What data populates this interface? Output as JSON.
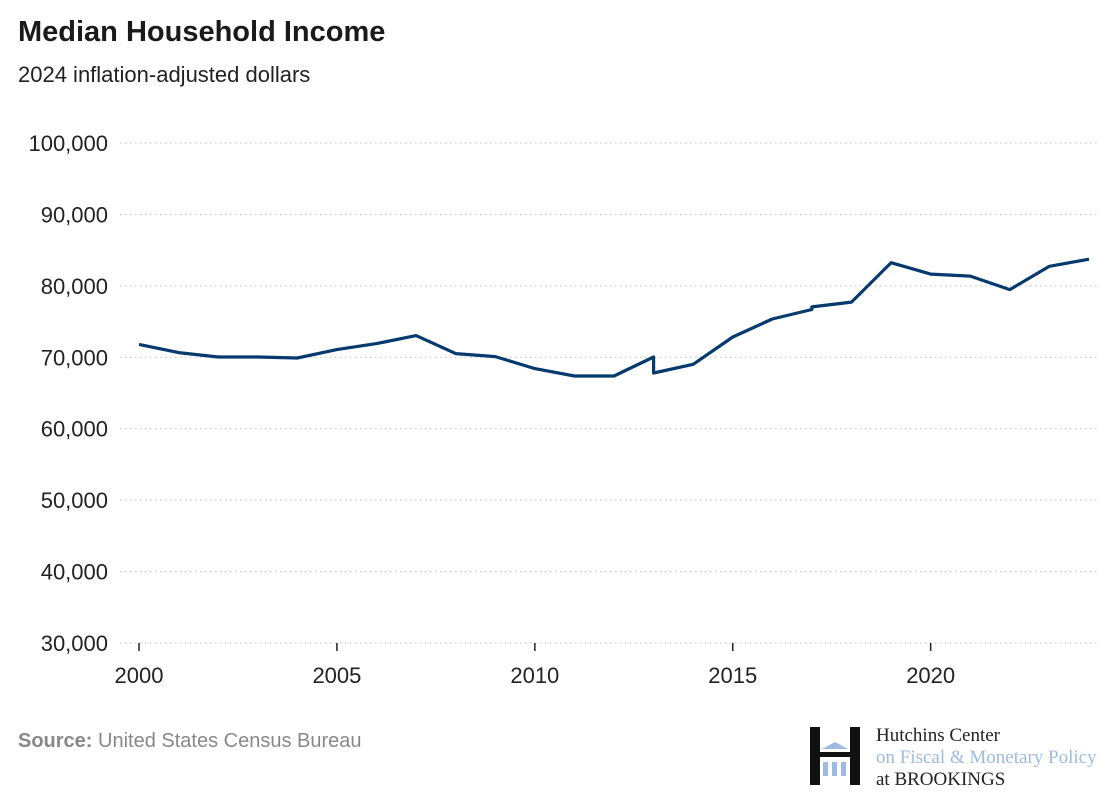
{
  "chart_data": {
    "type": "line",
    "title": "Median Household Income",
    "subtitle": "2024 inflation-adjusted dollars",
    "xlim": [
      2000,
      2024
    ],
    "ylim": [
      30000,
      100000
    ],
    "xticks": [
      2000,
      2005,
      2010,
      2015,
      2020
    ],
    "xtick_labels": [
      "2000",
      "2005",
      "2010",
      "2015",
      "2020"
    ],
    "yticks": [
      30000,
      40000,
      50000,
      60000,
      70000,
      80000,
      90000,
      100000
    ],
    "ytick_labels": [
      "30,000",
      "40,000",
      "50,000",
      "60,000",
      "70,000",
      "80,000",
      "90,000",
      "100,000"
    ],
    "grid": "horizontal dotted",
    "color": "#063a6e",
    "series": [
      {
        "points": [
          [
            2000,
            71800
          ],
          [
            2001,
            70660
          ],
          [
            2002,
            70040
          ],
          [
            2003,
            70040
          ],
          [
            2004,
            69900
          ],
          [
            2005,
            71080
          ],
          [
            2006,
            71920
          ],
          [
            2007,
            73040
          ],
          [
            2008,
            70520
          ],
          [
            2009,
            70100
          ],
          [
            2010,
            68420
          ],
          [
            2011,
            67380
          ],
          [
            2012,
            67380
          ],
          [
            2013,
            70040
          ],
          [
            2013,
            67800
          ],
          [
            2014,
            69020
          ],
          [
            2015,
            72840
          ],
          [
            2016,
            75360
          ],
          [
            2017,
            76690
          ],
          [
            2017,
            77060
          ],
          [
            2018,
            77720
          ],
          [
            2019,
            83240
          ],
          [
            2020,
            81640
          ],
          [
            2021,
            81360
          ],
          [
            2022,
            79480
          ],
          [
            2023,
            82740
          ],
          [
            2024,
            83730
          ]
        ]
      }
    ]
  },
  "source": {
    "label": "Source:",
    "text": "United States Census Bureau"
  },
  "logo": {
    "line1": "Hutchins Center",
    "line2": "on Fiscal & Monetary Policy",
    "line3": "at BROOKINGS"
  }
}
